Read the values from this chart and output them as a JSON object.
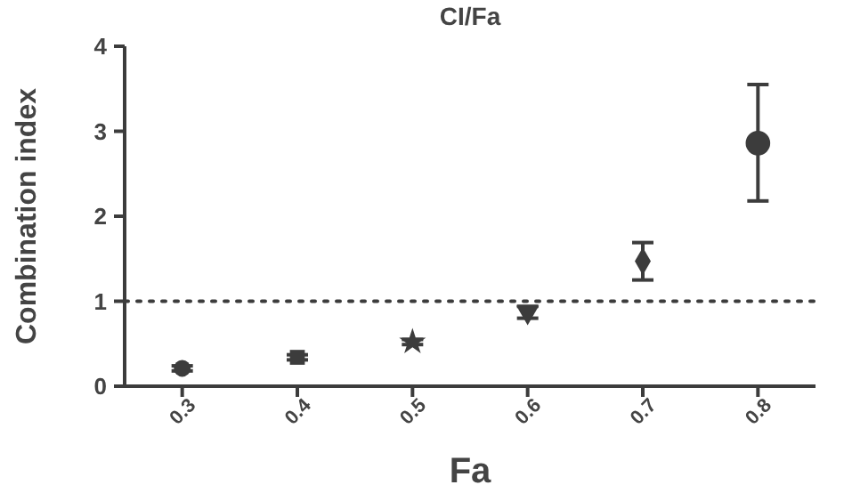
{
  "chart_data": {
    "type": "scatter",
    "title": "CI/Fa",
    "xlabel": "Fa",
    "ylabel": "Combination index",
    "xlim": [
      0.25,
      0.85
    ],
    "xticks": [
      0.3,
      0.4,
      0.5,
      0.6,
      0.7,
      0.8
    ],
    "ylim": [
      0,
      4
    ],
    "yticks": [
      0,
      1,
      2,
      3,
      4
    ],
    "series": [
      {
        "color": "#3c3c3c",
        "x": [
          0.3
        ],
        "values": [
          0.21
        ],
        "errors": [
          0.03
        ],
        "marker": "circle"
      },
      {
        "color": "#3c3c3c",
        "x": [
          0.4
        ],
        "values": [
          0.34
        ],
        "errors": [
          0.03
        ],
        "marker": "square"
      },
      {
        "color": "#3c3c3c",
        "x": [
          0.5
        ],
        "values": [
          0.52
        ],
        "errors": [
          0.03
        ],
        "marker": "star"
      },
      {
        "color": "#3c3c3c",
        "x": [
          0.6
        ],
        "values": [
          0.87
        ],
        "errors": [
          0.07
        ],
        "marker": "triangle"
      },
      {
        "color": "#3c3c3c",
        "x": [
          0.7
        ],
        "values": [
          1.47
        ],
        "errors": [
          0.22
        ],
        "marker": "diamond"
      },
      {
        "color": "#3c3c3c",
        "x": [
          0.8
        ],
        "values": [
          2.86
        ],
        "errors": [
          [
            2.18,
            3.55
          ]
        ],
        "marker": "circle"
      }
    ],
    "ref_lines": [
      {
        "axis": "y",
        "value": 1,
        "line_style": "dotted",
        "color": "#3c3c3c"
      }
    ]
  }
}
